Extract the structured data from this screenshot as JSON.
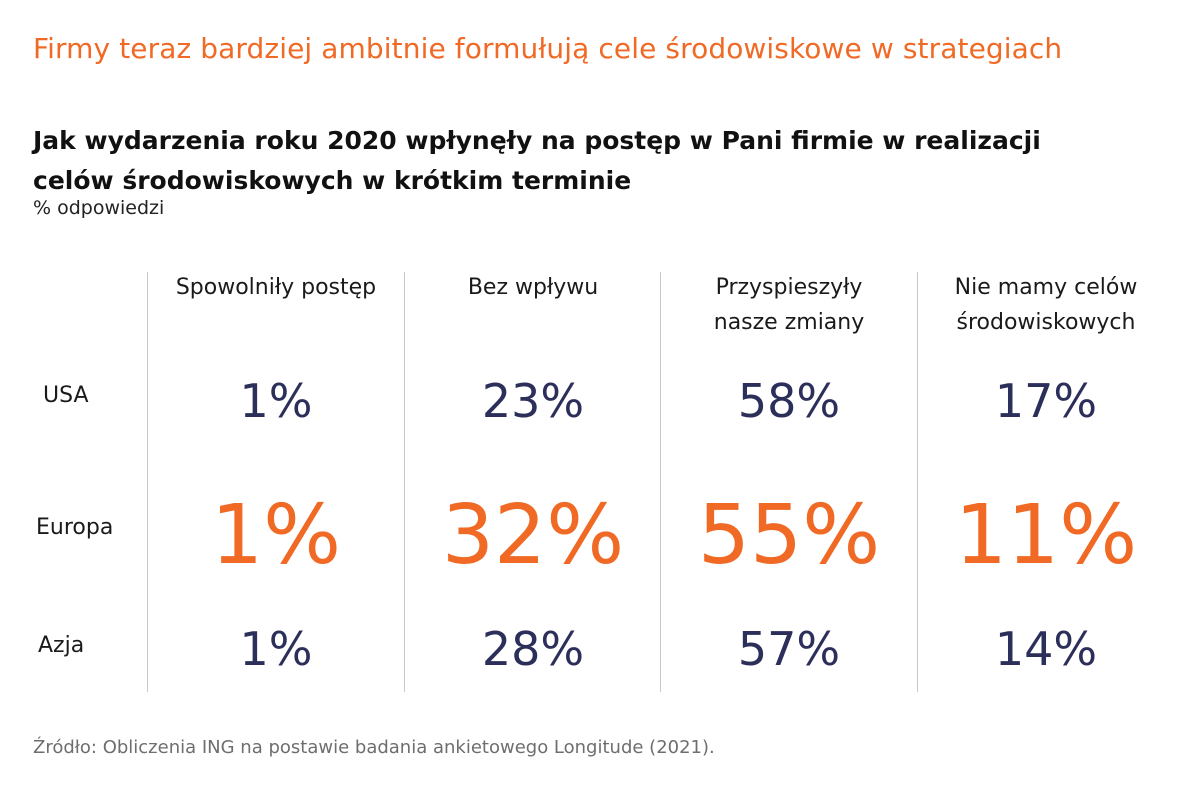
{
  "headline": "Firmy teraz bardziej ambitnie formułują cele środowiskowe w strategiach",
  "chart_data": {
    "type": "table",
    "title_lines": [
      "Jak wydarzenia roku 2020 wpłynęły na postęp w Pani firmie w realizacji",
      "celów środowiskowych w krótkim terminie"
    ],
    "subtitle": "% odpowiedzi",
    "columns": [
      [
        "Spowolniły postęp"
      ],
      [
        "Bez wpływu"
      ],
      [
        "Przyspieszyły",
        "nasze zmiany"
      ],
      [
        "Nie mamy celów",
        "środowiskowych"
      ]
    ],
    "rows": [
      {
        "label": "USA",
        "values": [
          "1%",
          "23%",
          "58%",
          "17%"
        ],
        "highlight": false
      },
      {
        "label": "Europa",
        "values": [
          "1%",
          "32%",
          "55%",
          "11%"
        ],
        "highlight": true
      },
      {
        "label": "Azja",
        "values": [
          "1%",
          "28%",
          "57%",
          "14%"
        ],
        "highlight": false
      }
    ],
    "colors": {
      "highlight": "#f06a25",
      "default_value": "#2b2f5a"
    }
  },
  "source": "Źródło: Obliczenia ING na postawie badania ankietowego Longitude (2021)."
}
